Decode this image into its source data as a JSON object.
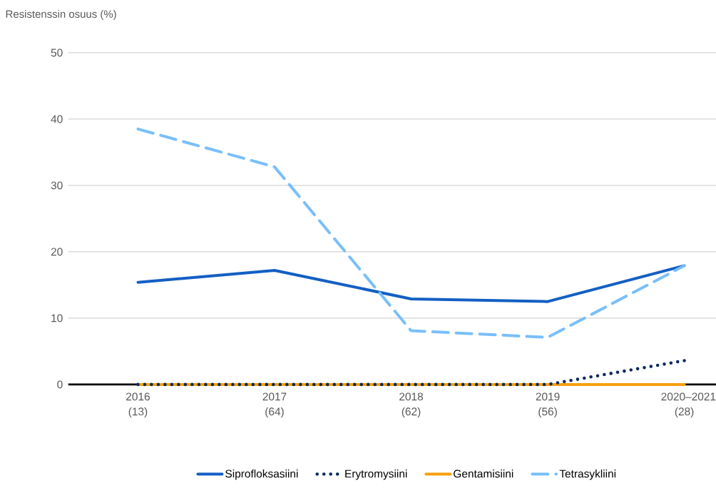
{
  "chart_data": {
    "type": "line",
    "ylabel": "Resistenssin osuus (%)",
    "categories": [
      "2016 (13)",
      "2017 (64)",
      "2018 (62)",
      "2019 (56)",
      "2020–2021 (28)"
    ],
    "series": [
      {
        "name": "Siprofloksasiini",
        "color": "#135fc4",
        "line_style": "solid",
        "values": [
          15.4,
          17.2,
          12.9,
          12.5,
          17.9
        ]
      },
      {
        "name": "Erytromysiini",
        "color": "#0b2a5e",
        "line_style": "dotted",
        "values": [
          0,
          0,
          0,
          0,
          3.6
        ]
      },
      {
        "name": "Gentamisiini",
        "color": "#f5a00e",
        "line_style": "solid",
        "values": [
          0,
          0,
          0,
          0,
          0
        ]
      },
      {
        "name": "Tetrasykliini",
        "color": "#79bffa",
        "line_style": "dashed",
        "values": [
          38.5,
          32.8,
          8.1,
          7.1,
          17.9
        ]
      }
    ],
    "ylim": [
      0,
      50
    ],
    "yticks": [
      0,
      10,
      20,
      30,
      40,
      50
    ],
    "grid": "y",
    "legend": "bottom",
    "marker": "none"
  }
}
